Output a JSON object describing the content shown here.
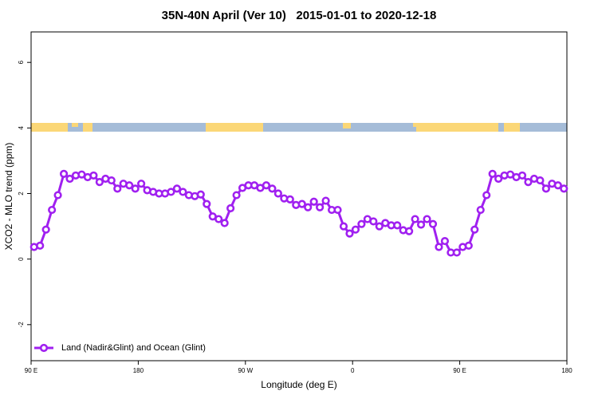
{
  "chart_data": {
    "type": "line",
    "title": "35N-40N April (Ver 10)   2015-01-01 to 2020-12-18",
    "x_label": "Longitude (deg E)",
    "y_label": "XCO2 - MLO trend (ppm)",
    "xlim": [
      90,
      540
    ],
    "xticks": [
      {
        "value": 90,
        "label": "90 E"
      },
      {
        "value": 180,
        "label": "180"
      },
      {
        "value": 270,
        "label": "90 W"
      },
      {
        "value": 360,
        "label": "0"
      },
      {
        "value": 450,
        "label": "90 E"
      },
      {
        "value": 540,
        "label": "180"
      }
    ],
    "ylim": [
      -3.1,
      6.93
    ],
    "yticks": [
      -2,
      0,
      2,
      4,
      6
    ],
    "legend": "bottom-left",
    "x": [
      92.5,
      97.5,
      102.5,
      107.5,
      112.5,
      117.5,
      122.5,
      127.5,
      132.5,
      137.5,
      142.5,
      147.5,
      152.5,
      157.5,
      162.5,
      167.5,
      172.5,
      177.5,
      182.5,
      187.5,
      192.5,
      197.5,
      202.5,
      207.5,
      212.5,
      217.5,
      222.5,
      227.5,
      232.5,
      237.5,
      242.5,
      247.5,
      252.5,
      257.5,
      262.5,
      267.5,
      272.5,
      277.5,
      282.5,
      287.5,
      292.5,
      297.5,
      302.5,
      307.5,
      312.5,
      317.5,
      322.5,
      327.5,
      332.5,
      337.5,
      342.5,
      347.5,
      352.5,
      357.5,
      362.5,
      367.5,
      372.5,
      377.5,
      382.5,
      387.5,
      392.5,
      397.5,
      402.5,
      407.5,
      412.5,
      417.5,
      422.5,
      427.5,
      432.5,
      437.5,
      442.5,
      447.5,
      452.5,
      457.5,
      462.5,
      467.5,
      472.5,
      477.5,
      482.5,
      487.5,
      492.5,
      497.5,
      502.5,
      507.5,
      512.5,
      517.5,
      522.5,
      527.5,
      532.5,
      537.5
    ],
    "series": [
      {
        "name": "Land (Nadir&Glint) and Ocean (Glint)",
        "color": "#a020f0",
        "values": [
          0.37,
          0.41,
          0.9,
          1.5,
          1.95,
          2.6,
          2.45,
          2.55,
          2.58,
          2.5,
          2.55,
          2.35,
          2.45,
          2.4,
          2.15,
          2.3,
          2.25,
          2.15,
          2.3,
          2.1,
          2.05,
          2.0,
          2.0,
          2.05,
          2.15,
          2.05,
          1.95,
          1.92,
          1.97,
          1.68,
          1.3,
          1.22,
          1.1,
          1.55,
          1.95,
          2.17,
          2.25,
          2.25,
          2.17,
          2.25,
          2.15,
          2.0,
          1.85,
          1.82,
          1.65,
          1.68,
          1.58,
          1.75,
          1.58,
          1.78,
          1.5,
          1.5,
          1.0,
          0.78,
          0.9,
          1.07,
          1.22,
          1.15,
          1.0,
          1.1,
          1.03,
          1.03,
          0.88,
          0.85,
          1.22,
          1.05,
          1.22,
          1.07,
          0.37,
          0.55,
          0.2,
          0.2,
          0.37,
          0.41,
          0.9,
          1.5,
          1.95,
          2.6,
          2.45,
          2.55,
          2.58,
          2.5,
          2.55,
          2.35,
          2.45,
          2.4,
          2.15,
          2.3,
          2.25,
          2.15
        ]
      }
    ]
  }
}
